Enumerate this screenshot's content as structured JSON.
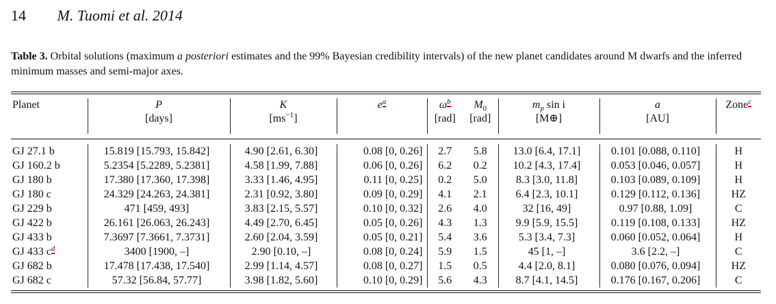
{
  "header": {
    "page": "14",
    "authors": "M. Tuomi et al. 2014"
  },
  "caption": {
    "label": "Table 3.",
    "text_a": "Orbital solutions (maximum",
    "text_b": "a posteriori",
    "text_c": "estimates and the 99% Bayesian credibility intervals) of the new planet candidates around M dwarfs and the inferred minimum masses and semi-major axes."
  },
  "columns": {
    "planet": "Planet",
    "P": "P",
    "P_unit": "[days]",
    "K": "K",
    "K_unit": "[ms",
    "K_exp": "−1",
    "K_close": "]",
    "e": "e",
    "e_sup": "a",
    "w": "ω",
    "w_sup": "b",
    "w_unit": "[rad]",
    "M0": "M",
    "M0_sub": "0",
    "M0_unit": "[rad]",
    "mp": "m",
    "mp_sub": "p",
    "mp_rest": " sin i",
    "mp_unit": "[M⊕]",
    "a": "a",
    "a_unit": "[AU]",
    "zone": "Zone",
    "zone_sup": "c"
  },
  "rows": [
    {
      "planet": "GJ 27.1 b",
      "P": "15.819 [15.793, 15.842]",
      "K": "4.90 [2.61, 6.30]",
      "e": "0.08 [0, 0.26]",
      "w": "2.7",
      "M0": "5.8",
      "mp": "13.0 [6.4, 17.1]",
      "a": "0.101 [0.088, 0.110]",
      "zone": "H"
    },
    {
      "planet": "GJ 160.2 b",
      "P": "5.2354 [5.2289, 5.2381]",
      "K": "4.58 [1.99, 7.88]",
      "e": "0.06 [0, 0.26]",
      "w": "6.2",
      "M0": "0.2",
      "mp": "10.2 [4.3, 17.4]",
      "a": "0.053 [0.046, 0.057]",
      "zone": "H"
    },
    {
      "planet": "GJ 180 b",
      "P": "17.380 [17.360, 17.398]",
      "K": "3.33 [1.46, 4.95]",
      "e": "0.11 [0, 0.25]",
      "w": "0.2",
      "M0": "5.0",
      "mp": "8.3 [3.0, 11.8]",
      "a": "0.103 [0.089, 0.109]",
      "zone": "H"
    },
    {
      "planet": "GJ 180 c",
      "P": "24.329 [24.263, 24.381]",
      "K": "2.31 [0.92, 3.80]",
      "e": "0.09 [0, 0.29]",
      "w": "4.1",
      "M0": "2.1",
      "mp": "6.4 [2.3, 10.1]",
      "a": "0.129 [0.112, 0.136]",
      "zone": "HZ"
    },
    {
      "planet": "GJ 229 b",
      "P": "471 [459, 493]",
      "K": "3.83 [2.15, 5.57]",
      "e": "0.10 [0, 0.32]",
      "w": "2.6",
      "M0": "4.0",
      "mp": "32 [16, 49]",
      "a": "0.97 [0.88, 1.09]",
      "zone": "C"
    },
    {
      "planet": "GJ 422 b",
      "P": "26.161 [26.063, 26.243]",
      "K": "4.49 [2.70, 6.45]",
      "e": "0.05 [0, 0.26]",
      "w": "4.3",
      "M0": "1.3",
      "mp": "9.9 [5.9, 15.5]",
      "a": "0.119 [0.108, 0.133]",
      "zone": "HZ"
    },
    {
      "planet": "GJ 433 b",
      "P": "7.3697 [7.3661, 7.3731]",
      "K": "2.60 [2.04, 3.59]",
      "e": "0.05 [0, 0.21]",
      "w": "5.4",
      "M0": "3.6",
      "mp": "5.3 [3.4, 7.3]",
      "a": "0.060 [0.052, 0.064]",
      "zone": "H"
    },
    {
      "planet": "GJ 433 c",
      "planet_sup": "d",
      "P": "3400 [1900, –]",
      "K": "2.90 [0.10, –]",
      "e": "0.08 [0, 0.24]",
      "w": "5.9",
      "M0": "1.5",
      "mp": "45 [1, –]",
      "a": "3.6 [2.2, –]",
      "zone": "C"
    },
    {
      "planet": "GJ 682 b",
      "P": "17.478 [17.438, 17.540]",
      "K": "2.99 [1.14, 4.57]",
      "e": "0.08 [0, 0.27]",
      "w": "1.5",
      "M0": "0.5",
      "mp": "4.4 [2.0, 8.1]",
      "a": "0.080 [0.076, 0.094]",
      "zone": "HZ"
    },
    {
      "planet": "GJ 682 c",
      "P": "57.32 [56.84, 57.77]",
      "K": "3.98 [1.82, 5.60]",
      "e": "0.10 [0, 0.29]",
      "w": "5.6",
      "M0": "4.3",
      "mp": "8.7 [4.1, 14.5]",
      "a": "0.176 [0.167, 0.206]",
      "zone": "C"
    }
  ]
}
